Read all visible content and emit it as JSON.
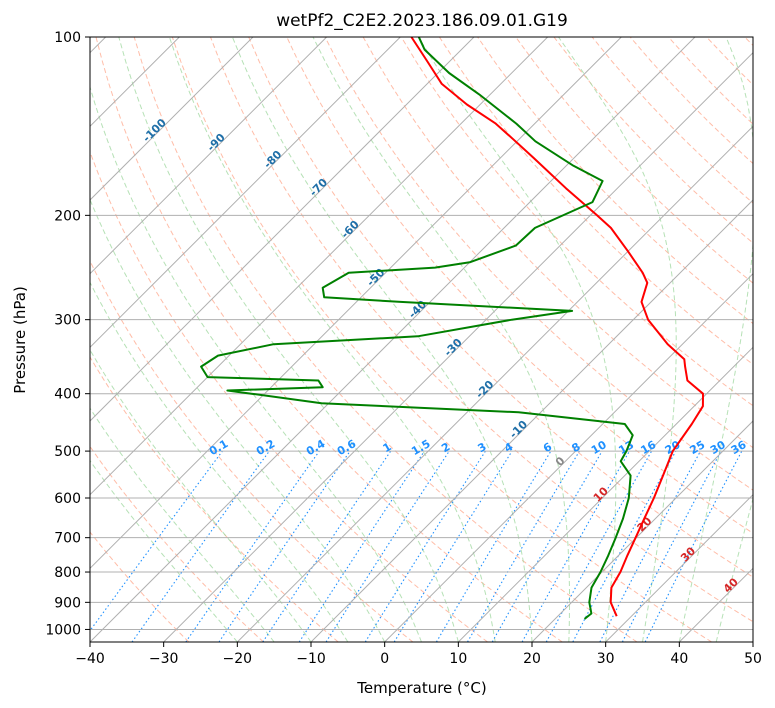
{
  "chart_data": {
    "type": "line",
    "subtype": "skew-t log-p",
    "title": "wetPf2_C2E2.2023.186.09.01.G19",
    "xlabel": "Temperature (°C)",
    "ylabel": "Pressure (hPa)",
    "xlim": [
      -40,
      50
    ],
    "ylim": [
      1050,
      100
    ],
    "y_scale": "log",
    "grid": true,
    "x_ticks": [
      -40,
      -30,
      -20,
      -10,
      0,
      10,
      20,
      30,
      40,
      50
    ],
    "x_tick_labels": [
      "−40",
      "−30",
      "−20",
      "−10",
      "0",
      "10",
      "20",
      "30",
      "40",
      "50"
    ],
    "y_ticks": [
      1000,
      900,
      800,
      700,
      600,
      500,
      400,
      300,
      200,
      100
    ],
    "y_tick_labels": [
      "1000",
      "900",
      "800",
      "700",
      "600",
      "500",
      "400",
      "300",
      "200",
      "100"
    ],
    "isotherm_labels": {
      "color": "#1f6fa8",
      "items": [
        {
          "text": "-100",
          "value": -100
        },
        {
          "text": "-90",
          "value": -90
        },
        {
          "text": "-80",
          "value": -80
        },
        {
          "text": "-70",
          "value": -70
        },
        {
          "text": "-60",
          "value": -60
        },
        {
          "text": "-50",
          "value": -50
        },
        {
          "text": "-40",
          "value": -40
        },
        {
          "text": "-30",
          "value": -30
        },
        {
          "text": "-20",
          "value": -20
        },
        {
          "text": "-10",
          "value": -10
        }
      ]
    },
    "isotherm_labels_warm": {
      "items": [
        {
          "text": "0",
          "value": 0,
          "color": "#888888"
        },
        {
          "text": "10",
          "value": 10,
          "color": "#d62728"
        },
        {
          "text": "20",
          "value": 20,
          "color": "#d62728"
        },
        {
          "text": "30",
          "value": 30,
          "color": "#d62728"
        },
        {
          "text": "40",
          "value": 40,
          "color": "#d62728"
        }
      ]
    },
    "mixing_ratio_labels": {
      "color": "#1e90ff",
      "values": [
        "0.1",
        "0.2",
        "0.4",
        "0.6",
        "1",
        "1.5",
        "2",
        "3",
        "4",
        "6",
        "8",
        "10",
        "13",
        "16",
        "20",
        "25",
        "30",
        "36"
      ]
    },
    "series": [
      {
        "name": "",
        "color": "#ff0000",
        "points": [
          {
            "p": 950,
            "t": 28
          },
          {
            "p": 900,
            "t": 25.3
          },
          {
            "p": 850,
            "t": 23.4
          },
          {
            "p": 800,
            "t": 22.5
          },
          {
            "p": 750,
            "t": 21.2
          },
          {
            "p": 700,
            "t": 19.9
          },
          {
            "p": 650,
            "t": 18.5
          },
          {
            "p": 600,
            "t": 17.0
          },
          {
            "p": 550,
            "t": 15.2
          },
          {
            "p": 500,
            "t": 13.2
          },
          {
            "p": 450,
            "t": 12.1
          },
          {
            "p": 420,
            "t": 11.2
          },
          {
            "p": 400,
            "t": 9.5
          },
          {
            "p": 380,
            "t": 5.6
          },
          {
            "p": 360,
            "t": 3.4
          },
          {
            "p": 350,
            "t": 2.3
          },
          {
            "p": 330,
            "t": -2.0
          },
          {
            "p": 300,
            "t": -8.0
          },
          {
            "p": 280,
            "t": -11.3
          },
          {
            "p": 260,
            "t": -13.1
          },
          {
            "p": 250,
            "t": -15.1
          },
          {
            "p": 230,
            "t": -20.0
          },
          {
            "p": 210,
            "t": -25.5
          },
          {
            "p": 200,
            "t": -29.1
          },
          {
            "p": 180,
            "t": -37.0
          },
          {
            "p": 160,
            "t": -45.5
          },
          {
            "p": 150,
            "t": -50.2
          },
          {
            "p": 140,
            "t": -55.3
          },
          {
            "p": 130,
            "t": -61.8
          },
          {
            "p": 120,
            "t": -68.0
          },
          {
            "p": 110,
            "t": -73.0
          },
          {
            "p": 100,
            "t": -78.5
          }
        ]
      },
      {
        "name": "",
        "color": "#008000",
        "points": [
          {
            "p": 960,
            "t": 24
          },
          {
            "p": 940,
            "t": 24.2
          },
          {
            "p": 900,
            "t": 22.4
          },
          {
            "p": 850,
            "t": 20.7
          },
          {
            "p": 800,
            "t": 19.8
          },
          {
            "p": 750,
            "t": 18.6
          },
          {
            "p": 700,
            "t": 17.2
          },
          {
            "p": 650,
            "t": 15.6
          },
          {
            "p": 600,
            "t": 13.6
          },
          {
            "p": 550,
            "t": 10.8
          },
          {
            "p": 520,
            "t": 7.5
          },
          {
            "p": 500,
            "t": 6.9
          },
          {
            "p": 470,
            "t": 5.6
          },
          {
            "p": 450,
            "t": 3.0
          },
          {
            "p": 430,
            "t": -13.0
          },
          {
            "p": 415,
            "t": -41.0
          },
          {
            "p": 400,
            "t": -51.8
          },
          {
            "p": 395,
            "t": -55.5
          },
          {
            "p": 390,
            "t": -43.0
          },
          {
            "p": 380,
            "t": -44.5
          },
          {
            "p": 375,
            "t": -60.0
          },
          {
            "p": 360,
            "t": -62.3
          },
          {
            "p": 345,
            "t": -61.5
          },
          {
            "p": 330,
            "t": -55.5
          },
          {
            "p": 320,
            "t": -37.0
          },
          {
            "p": 300,
            "t": -26.5
          },
          {
            "p": 290,
            "t": -19.5
          },
          {
            "p": 280,
            "t": -44.0
          },
          {
            "p": 275,
            "t": -55.0
          },
          {
            "p": 265,
            "t": -56.5
          },
          {
            "p": 250,
            "t": -55.0
          },
          {
            "p": 245,
            "t": -44.0
          },
          {
            "p": 240,
            "t": -40.0
          },
          {
            "p": 225,
            "t": -36.0
          },
          {
            "p": 210,
            "t": -35.8
          },
          {
            "p": 190,
            "t": -31.5
          },
          {
            "p": 175,
            "t": -33.0
          },
          {
            "p": 165,
            "t": -39.0
          },
          {
            "p": 150,
            "t": -47.5
          },
          {
            "p": 140,
            "t": -52.5
          },
          {
            "p": 125,
            "t": -61.5
          },
          {
            "p": 115,
            "t": -68.5
          },
          {
            "p": 105,
            "t": -75.0
          },
          {
            "p": 100,
            "t": -77.5
          }
        ]
      }
    ]
  }
}
